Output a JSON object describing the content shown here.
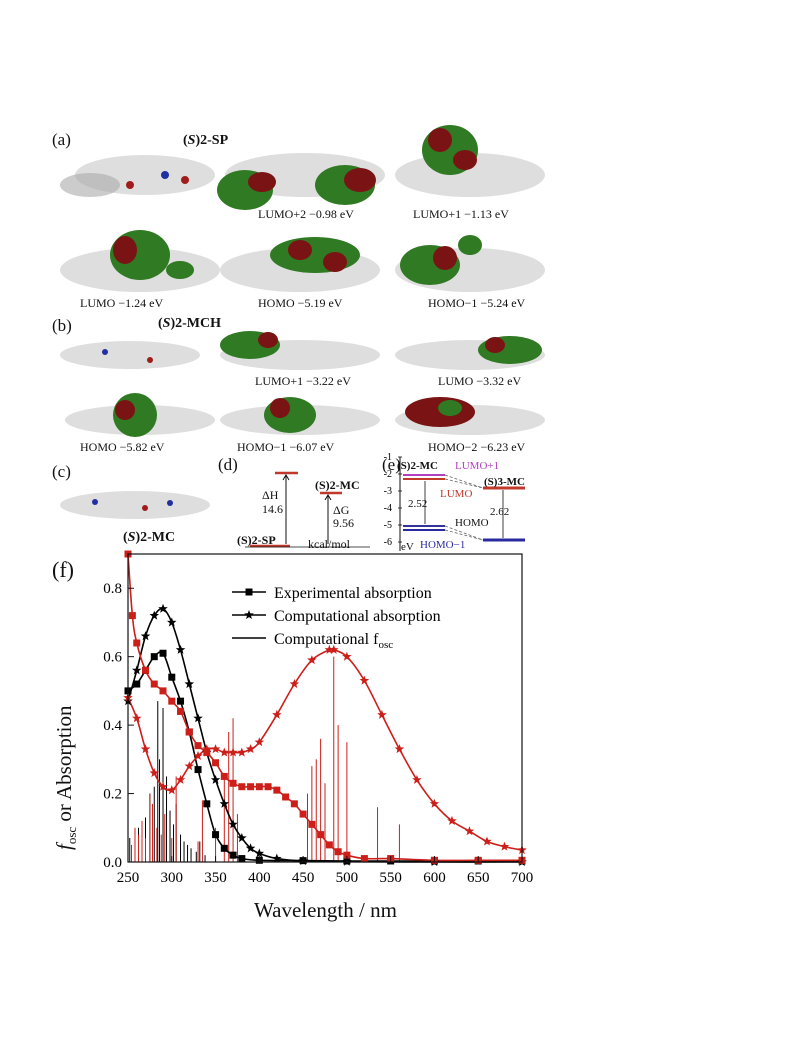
{
  "figure": {
    "panels": {
      "a": {
        "label": "(a)",
        "title_italic": "S",
        "title_rest": "2-SP",
        "orbitals": [
          {
            "name": "LUMO+2",
            "energy": "−0.98 eV"
          },
          {
            "name": "LUMO+1",
            "energy": "−1.13 eV"
          },
          {
            "name": "LUMO",
            "energy": "−1.24 eV"
          },
          {
            "name": "HOMO",
            "energy": "−5.19 eV"
          },
          {
            "name": "HOMO−1",
            "energy": "−5.24 eV"
          }
        ]
      },
      "b": {
        "label": "(b)",
        "title_italic": "S",
        "title_rest": "2-MCH",
        "orbitals": [
          {
            "name": "LUMO+1",
            "energy": "−3.22 eV"
          },
          {
            "name": "LUMO",
            "energy": "−3.32 eV"
          },
          {
            "name": "HOMO",
            "energy": "−5.82 eV"
          },
          {
            "name": "HOMO−1",
            "energy": "−6.07 eV"
          },
          {
            "name": "HOMO−2",
            "energy": "−6.23 eV"
          }
        ]
      },
      "c": {
        "label": "(c)",
        "title_italic": "S",
        "title_rest": "2-MC"
      },
      "d": {
        "label": "(d)",
        "top_label": "(S)2-MC",
        "bottom_label": "(S)2-SP",
        "dH_label": "ΔH",
        "dH_value": "14.6",
        "dG_label": "ΔG",
        "dG_value": "9.56",
        "unit": "kcal/mol"
      },
      "e": {
        "label": "(e)",
        "y_ticks": [
          "-1",
          "-2",
          "-3",
          "-4",
          "-5",
          "-6"
        ],
        "unit": "eV",
        "left_label": "(S)2-MC",
        "right_label": "(S)3-MC",
        "lumo1_label": "LUMO+1",
        "lumo_label": "LUMO",
        "homo_label": "HOMO",
        "homo1_label": "HOMO−1",
        "gap_left": "2.52",
        "gap_right": "2.62",
        "colors": {
          "lumo1": "#b040c0",
          "lumo": "#c0392b",
          "homo": "#333399",
          "homo1": "#2a2aa0"
        }
      },
      "f": {
        "label": "(f)"
      }
    }
  },
  "chart_data": {
    "type": "line",
    "xlabel": "Wavelength / nm",
    "ylabel_main": "f",
    "ylabel_sub": "osc",
    "ylabel_rest": " or Absorption",
    "xlim": [
      250,
      700
    ],
    "ylim": [
      0,
      0.9
    ],
    "x_ticks": [
      250,
      300,
      350,
      400,
      450,
      500,
      550,
      600,
      650,
      700
    ],
    "y_ticks": [
      0.0,
      0.2,
      0.4,
      0.6,
      0.8
    ],
    "legend": [
      {
        "label": "Experimental absorption",
        "marker": "square"
      },
      {
        "label": "Computational absorption",
        "marker": "star"
      },
      {
        "label": "Computational f",
        "label_sub": "osc",
        "marker": "line"
      }
    ],
    "series": [
      {
        "name": "Experimental absorption",
        "color": "#000000",
        "marker": "square",
        "x": [
          250,
          260,
          270,
          280,
          290,
          300,
          310,
          320,
          330,
          340,
          350,
          360,
          370,
          380,
          400,
          450,
          500,
          550,
          600,
          650,
          700
        ],
        "y": [
          0.5,
          0.52,
          0.56,
          0.6,
          0.61,
          0.54,
          0.47,
          0.38,
          0.27,
          0.17,
          0.08,
          0.04,
          0.02,
          0.01,
          0.005,
          0.004,
          0.003,
          0.003,
          0.003,
          0.003,
          0.003
        ]
      },
      {
        "name": "Computational absorption",
        "color": "#000000",
        "marker": "star",
        "x": [
          250,
          260,
          270,
          280,
          290,
          300,
          310,
          320,
          330,
          340,
          350,
          360,
          370,
          380,
          390,
          400,
          420,
          450,
          500,
          600,
          700
        ],
        "y": [
          0.47,
          0.56,
          0.66,
          0.72,
          0.74,
          0.7,
          0.62,
          0.52,
          0.42,
          0.32,
          0.24,
          0.17,
          0.11,
          0.07,
          0.04,
          0.025,
          0.01,
          0.003,
          0.001,
          0.0,
          0.0
        ]
      },
      {
        "color": "#cc1f1a",
        "marker": "square",
        "x": [
          250,
          255,
          260,
          270,
          280,
          290,
          300,
          310,
          320,
          330,
          340,
          350,
          360,
          370,
          380,
          390,
          400,
          410,
          420,
          430,
          440,
          450,
          460,
          470,
          480,
          490,
          500,
          520,
          550,
          600,
          650,
          700
        ],
        "y": [
          0.9,
          0.72,
          0.64,
          0.56,
          0.52,
          0.5,
          0.47,
          0.44,
          0.38,
          0.34,
          0.32,
          0.29,
          0.25,
          0.23,
          0.22,
          0.22,
          0.22,
          0.22,
          0.21,
          0.19,
          0.17,
          0.14,
          0.11,
          0.08,
          0.05,
          0.03,
          0.02,
          0.01,
          0.01,
          0.005,
          0.005,
          0.005
        ]
      },
      {
        "color": "#cc1f1a",
        "marker": "star",
        "x": [
          250,
          260,
          270,
          280,
          290,
          300,
          310,
          320,
          330,
          340,
          350,
          360,
          370,
          380,
          390,
          400,
          420,
          440,
          460,
          480,
          485,
          500,
          520,
          540,
          560,
          580,
          600,
          620,
          640,
          660,
          680,
          700
        ],
        "y": [
          0.48,
          0.42,
          0.33,
          0.26,
          0.22,
          0.21,
          0.24,
          0.28,
          0.31,
          0.33,
          0.33,
          0.32,
          0.32,
          0.32,
          0.33,
          0.35,
          0.43,
          0.52,
          0.59,
          0.62,
          0.62,
          0.6,
          0.53,
          0.43,
          0.33,
          0.24,
          0.17,
          0.12,
          0.09,
          0.06,
          0.045,
          0.035
        ]
      }
    ],
    "sticks": [
      {
        "color": "#000000",
        "x": [
          252,
          258,
          262,
          266,
          270,
          275,
          280,
          284,
          286,
          290,
          294,
          298,
          302,
          305,
          310,
          314,
          318,
          322,
          328,
          332,
          338
        ],
        "y": [
          0.07,
          0.05,
          0.1,
          0.06,
          0.13,
          0.2,
          0.22,
          0.47,
          0.3,
          0.45,
          0.25,
          0.15,
          0.11,
          0.17,
          0.08,
          0.06,
          0.05,
          0.04,
          0.03,
          0.06,
          0.02
        ]
      },
      {
        "color": "#cc1f1a",
        "x": [
          254,
          258,
          262,
          266,
          270,
          275,
          278,
          283,
          288,
          292,
          300,
          305,
          330,
          335,
          350,
          360,
          365,
          370,
          375,
          455,
          460,
          465,
          470,
          475,
          485,
          490,
          500,
          535,
          560
        ],
        "y": [
          0.05,
          0.1,
          0.08,
          0.12,
          0.07,
          0.2,
          0.17,
          0.1,
          0.08,
          0.14,
          0.07,
          0.25,
          0.06,
          0.18,
          0.1,
          0.26,
          0.38,
          0.42,
          0.14,
          0.2,
          0.28,
          0.3,
          0.36,
          0.23,
          0.6,
          0.4,
          0.35,
          0.16,
          0.11
        ]
      }
    ]
  }
}
